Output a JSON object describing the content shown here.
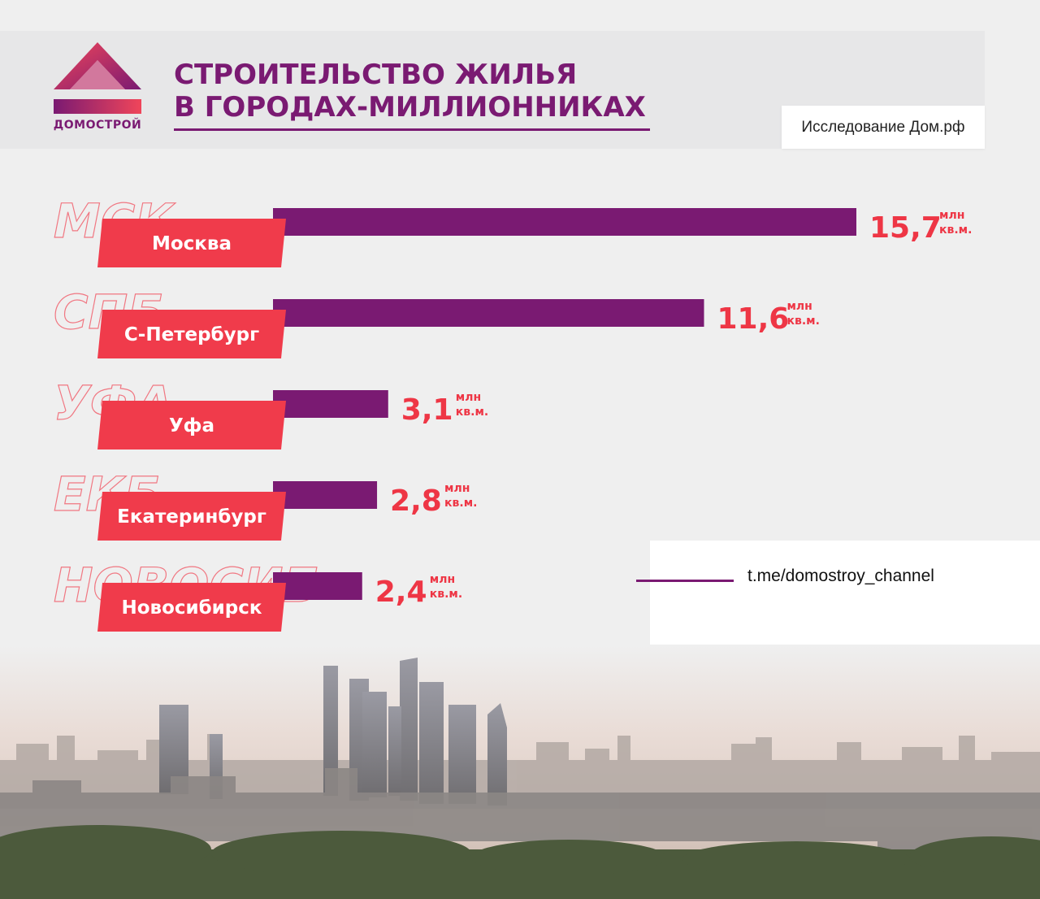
{
  "brand": {
    "name": "ДОМОСТРОЙ",
    "color": "#7a1a72",
    "accent": "#ee3645"
  },
  "header": {
    "title_line1": "СТРОИТЕЛЬСТВО ЖИЛЬЯ",
    "title_line2": "В ГОРОДАХ-МИЛЛИОННИКАХ",
    "source": "Исследование Дом.рф"
  },
  "footer": {
    "link": "t.me/domostroy_channel"
  },
  "chart_data": {
    "type": "bar",
    "orientation": "horizontal",
    "categories": [
      "Москва",
      "С-Петербург",
      "Уфа",
      "Екатеринбург",
      "Новосибирск"
    ],
    "abbreviations": [
      "МСК",
      "СПБ",
      "УФА",
      "ЕКБ",
      "НОВОСИБ"
    ],
    "values": [
      15.7,
      11.6,
      3.1,
      2.8,
      2.4
    ],
    "value_labels": [
      "15,7",
      "11,6",
      "3,1",
      "2,8",
      "2,4"
    ],
    "unit_line1": "млн",
    "unit_line2": "кв.м.",
    "bar_color": "#7a1a72",
    "label_color": "#f03b4b"
  }
}
